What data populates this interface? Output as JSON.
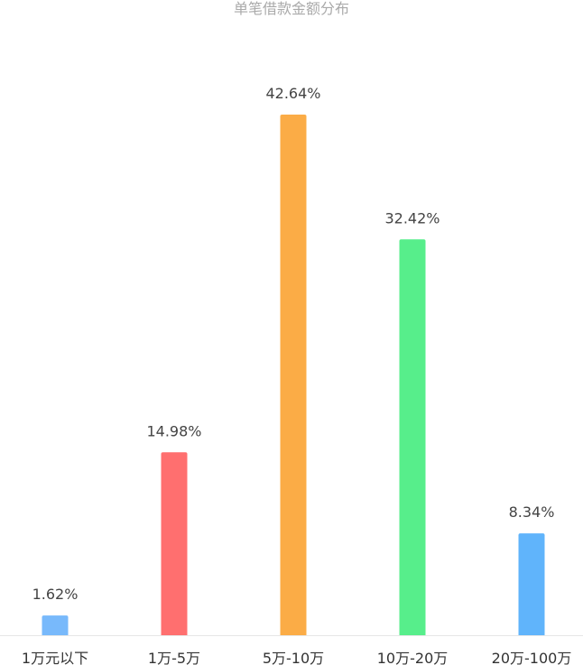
{
  "chart_data": {
    "type": "bar",
    "title": "单笔借款金额分布",
    "categories": [
      "1万元以下",
      "1万-5万",
      "5万-10万",
      "10万-20万",
      "20万-100万"
    ],
    "values": [
      1.62,
      14.98,
      42.64,
      32.42,
      8.34
    ],
    "value_labels": [
      "1.62%",
      "14.98%",
      "42.64%",
      "32.42%",
      "8.34%"
    ],
    "colors": [
      "#78b9fb",
      "#ff6f6f",
      "#fbac46",
      "#57ee8b",
      "#60b4fb"
    ],
    "ylim": [
      0,
      45
    ],
    "grid": false,
    "legend": "none"
  }
}
